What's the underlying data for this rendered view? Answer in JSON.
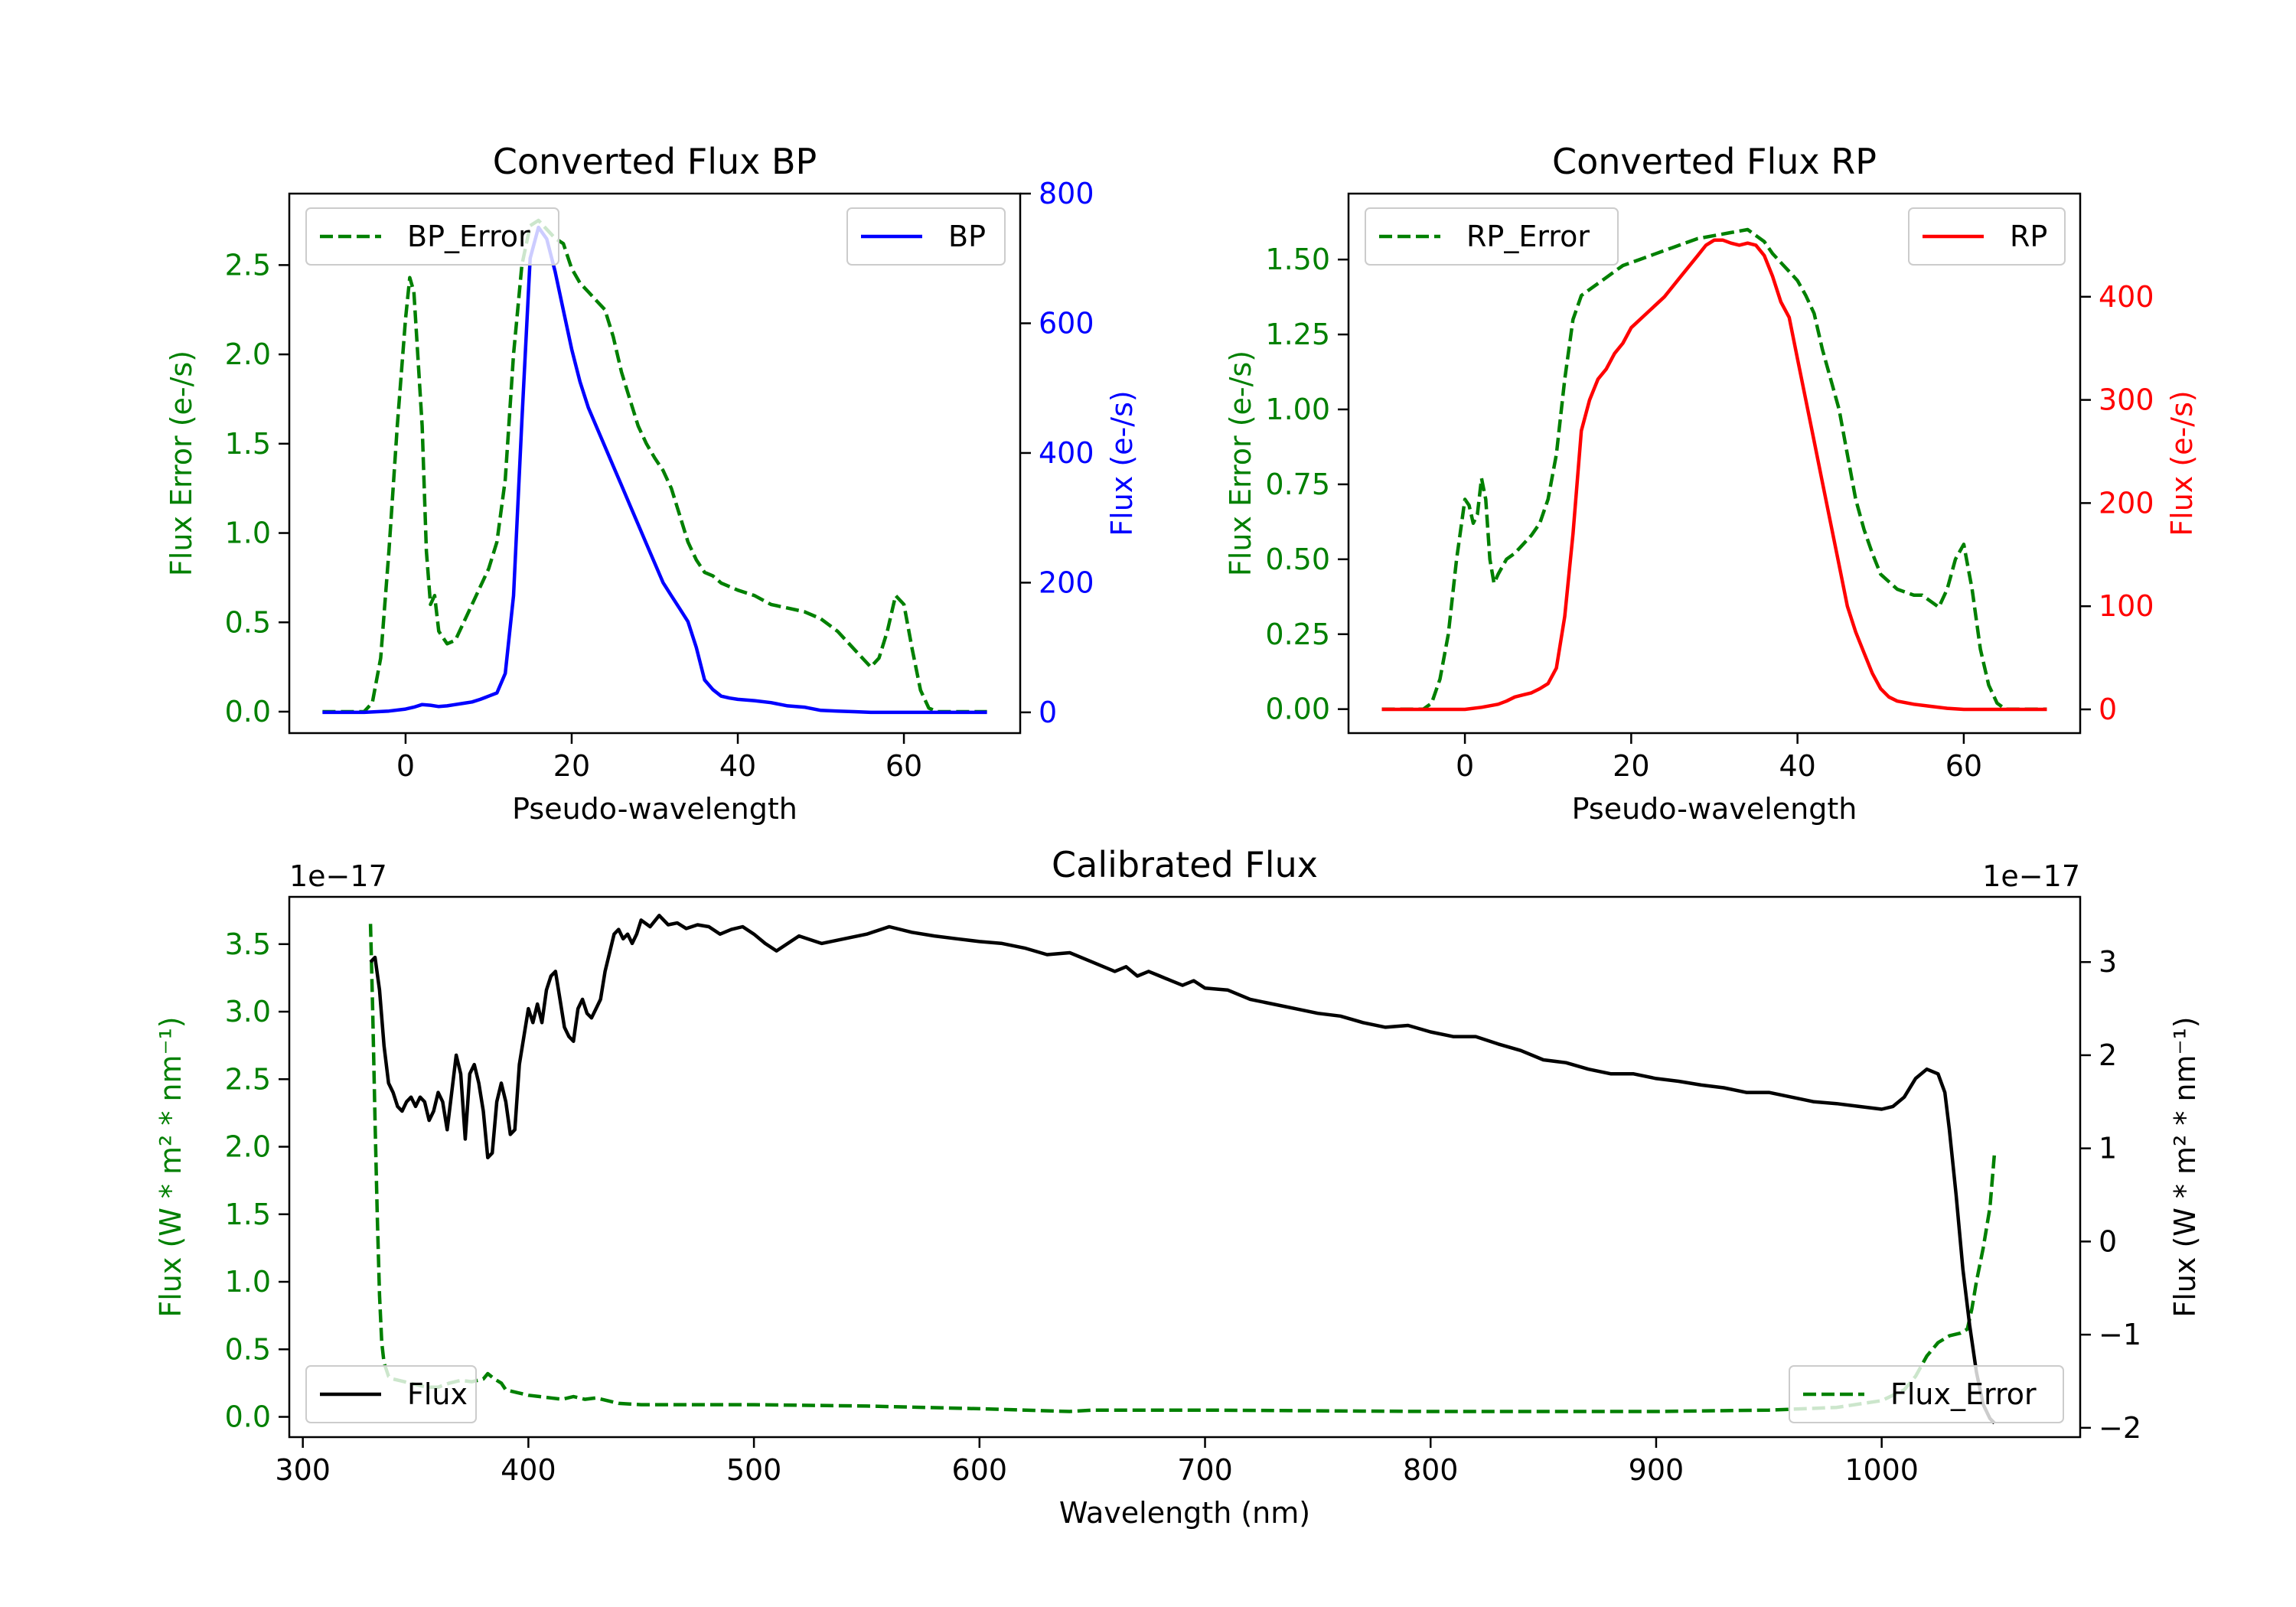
{
  "colors": {
    "green": "#008000",
    "blue": "#0000ff",
    "red": "#ff0000",
    "black": "#000000"
  },
  "chart_data": [
    {
      "type": "line",
      "title": "Converted Flux BP",
      "xlabel": "Pseudo-wavelength",
      "ylabel": "Flux Error (e-/s)",
      "ylabel_right": "Flux (e-/s)",
      "xlim": [
        -14,
        74
      ],
      "ylim": [
        -0.12,
        2.9
      ],
      "ylim_right": [
        -32,
        800
      ],
      "x_ticks": [
        0,
        20,
        40,
        60
      ],
      "y_ticks": [
        0.0,
        0.5,
        1.0,
        1.5,
        2.0,
        2.5
      ],
      "y_tick_labels": [
        "0.0",
        "0.5",
        "1.0",
        "1.5",
        "2.0",
        "2.5"
      ],
      "y_ticks_right": [
        0,
        200,
        400,
        600,
        800
      ],
      "y_tick_labels_right": [
        "0",
        "200",
        "400",
        "600",
        "800"
      ],
      "legend_left": "BP_Error",
      "legend_right": "BP",
      "series": [
        {
          "name": "BP_Error",
          "axis": "left",
          "color": "green",
          "dash": true,
          "x": [
            -10,
            -5,
            -4,
            -3,
            -2,
            -1,
            0,
            0.5,
            1,
            2,
            2.5,
            3,
            3.5,
            4,
            5,
            6,
            7,
            8,
            9,
            10,
            11,
            12,
            13,
            14,
            15,
            16,
            17,
            18,
            19,
            20,
            21,
            22,
            23,
            24,
            25,
            26,
            27,
            28,
            29,
            30,
            31,
            32,
            33,
            34,
            35,
            36,
            37,
            38,
            40,
            42,
            44,
            46,
            48,
            50,
            52,
            54,
            56,
            57,
            58,
            59,
            60,
            61,
            62,
            63,
            64,
            65,
            66,
            67,
            68,
            69,
            70
          ],
          "values": [
            0,
            0,
            0.05,
            0.3,
            0.9,
            1.6,
            2.2,
            2.43,
            2.35,
            1.6,
            0.9,
            0.6,
            0.65,
            0.45,
            0.38,
            0.4,
            0.5,
            0.6,
            0.7,
            0.8,
            0.95,
            1.3,
            2.0,
            2.5,
            2.72,
            2.75,
            2.7,
            2.65,
            2.62,
            2.48,
            2.4,
            2.35,
            2.3,
            2.25,
            2.1,
            1.9,
            1.75,
            1.6,
            1.5,
            1.42,
            1.35,
            1.25,
            1.1,
            0.95,
            0.85,
            0.78,
            0.76,
            0.72,
            0.68,
            0.65,
            0.6,
            0.58,
            0.56,
            0.52,
            0.45,
            0.35,
            0.25,
            0.3,
            0.45,
            0.65,
            0.6,
            0.35,
            0.12,
            0.02,
            0,
            0,
            0,
            0,
            0,
            0,
            0
          ]
        },
        {
          "name": "BP",
          "axis": "right",
          "color": "blue",
          "dash": false,
          "x": [
            -10,
            -5,
            -2,
            0,
            1,
            2,
            3,
            4,
            5,
            6,
            7,
            8,
            9,
            10,
            11,
            12,
            13,
            14,
            15,
            16,
            17,
            18,
            19,
            20,
            21,
            22,
            23,
            24,
            25,
            26,
            27,
            28,
            29,
            30,
            31,
            32,
            33,
            34,
            35,
            36,
            37,
            38,
            39,
            40,
            42,
            44,
            46,
            48,
            50,
            52,
            54,
            56,
            58,
            60,
            62,
            65,
            70
          ],
          "values": [
            0,
            0,
            2,
            5,
            8,
            12,
            11,
            9,
            10,
            12,
            14,
            16,
            20,
            25,
            30,
            60,
            180,
            450,
            700,
            748,
            730,
            680,
            620,
            560,
            510,
            470,
            440,
            410,
            380,
            350,
            320,
            290,
            260,
            230,
            200,
            180,
            160,
            140,
            100,
            50,
            35,
            25,
            22,
            20,
            18,
            15,
            10,
            8,
            3,
            2,
            1,
            0,
            0,
            0,
            0,
            0,
            0
          ]
        }
      ]
    },
    {
      "type": "line",
      "title": "Converted Flux RP",
      "xlabel": "Pseudo-wavelength",
      "ylabel": "Flux Error (e-/s)",
      "ylabel_right": "Flux (e-/s)",
      "xlim": [
        -14,
        74
      ],
      "ylim": [
        -0.08,
        1.72
      ],
      "ylim_right": [
        -23,
        500
      ],
      "x_ticks": [
        0,
        20,
        40,
        60
      ],
      "y_ticks": [
        0.0,
        0.25,
        0.5,
        0.75,
        1.0,
        1.25,
        1.5
      ],
      "y_tick_labels": [
        "0.00",
        "0.25",
        "0.50",
        "0.75",
        "1.00",
        "1.25",
        "1.50"
      ],
      "y_ticks_right": [
        0,
        100,
        200,
        300,
        400
      ],
      "y_tick_labels_right": [
        "0",
        "100",
        "200",
        "300",
        "400"
      ],
      "legend_left": "RP_Error",
      "legend_right": "RP",
      "series": [
        {
          "name": "RP_Error",
          "axis": "left",
          "color": "green",
          "dash": true,
          "x": [
            -10,
            -5,
            -4,
            -3,
            -2,
            -1,
            0,
            0.5,
            1,
            1.5,
            2,
            2.5,
            3,
            3.5,
            4,
            5,
            6,
            7,
            8,
            9,
            10,
            11,
            12,
            13,
            14,
            15,
            16,
            17,
            18,
            19,
            20,
            21,
            22,
            23,
            24,
            25,
            26,
            28,
            30,
            32,
            34,
            35,
            36,
            37,
            38,
            39,
            40,
            41,
            42,
            43,
            44,
            45,
            46,
            47,
            48,
            49,
            50,
            52,
            54,
            55,
            56,
            57,
            58,
            59,
            60,
            61,
            62,
            63,
            64,
            65,
            70
          ],
          "values": [
            0,
            0,
            0.02,
            0.1,
            0.25,
            0.5,
            0.7,
            0.68,
            0.62,
            0.65,
            0.77,
            0.7,
            0.5,
            0.42,
            0.45,
            0.5,
            0.52,
            0.55,
            0.58,
            0.62,
            0.7,
            0.85,
            1.1,
            1.3,
            1.38,
            1.4,
            1.42,
            1.44,
            1.46,
            1.48,
            1.49,
            1.5,
            1.51,
            1.52,
            1.53,
            1.54,
            1.55,
            1.57,
            1.58,
            1.59,
            1.6,
            1.58,
            1.56,
            1.52,
            1.49,
            1.46,
            1.43,
            1.38,
            1.32,
            1.2,
            1.1,
            1.0,
            0.85,
            0.7,
            0.6,
            0.52,
            0.45,
            0.4,
            0.38,
            0.38,
            0.36,
            0.34,
            0.4,
            0.5,
            0.55,
            0.4,
            0.2,
            0.08,
            0.02,
            0,
            0
          ]
        },
        {
          "name": "RP",
          "axis": "right",
          "color": "red",
          "dash": false,
          "x": [
            -10,
            -5,
            0,
            2,
            4,
            5,
            6,
            7,
            8,
            9,
            10,
            11,
            12,
            13,
            14,
            15,
            16,
            17,
            18,
            19,
            20,
            22,
            24,
            26,
            28,
            29,
            30,
            31,
            32,
            33,
            34,
            35,
            36,
            37,
            38,
            39,
            40,
            41,
            42,
            43,
            44,
            45,
            46,
            47,
            48,
            49,
            50,
            51,
            52,
            54,
            56,
            58,
            60,
            62,
            65,
            70
          ],
          "values": [
            0,
            0,
            0,
            2,
            5,
            8,
            12,
            14,
            16,
            20,
            25,
            40,
            90,
            170,
            270,
            300,
            320,
            330,
            345,
            355,
            370,
            385,
            400,
            420,
            440,
            450,
            455,
            455,
            452,
            450,
            452,
            450,
            440,
            420,
            395,
            380,
            340,
            300,
            260,
            220,
            180,
            140,
            100,
            75,
            55,
            35,
            20,
            12,
            8,
            5,
            3,
            1,
            0,
            0,
            0,
            0
          ]
        }
      ]
    },
    {
      "type": "line",
      "title": "Calibrated Flux",
      "xlabel": "Wavelength (nm)",
      "ylabel": "Flux (W * m² * nm⁻¹)",
      "ylabel_right": "Flux (W * m² * nm⁻¹)",
      "offset_left": "1e−17",
      "offset_right": "1e−17",
      "xlim": [
        294,
        1088
      ],
      "ylim": [
        -0.15,
        3.85
      ],
      "ylim_right": [
        -2.1,
        3.7
      ],
      "x_ticks": [
        300,
        400,
        500,
        600,
        700,
        800,
        900,
        1000
      ],
      "y_ticks": [
        0.0,
        0.5,
        1.0,
        1.5,
        2.0,
        2.5,
        3.0,
        3.5
      ],
      "y_tick_labels": [
        "0.0",
        "0.5",
        "1.0",
        "1.5",
        "2.0",
        "2.5",
        "3.0",
        "3.5"
      ],
      "y_ticks_right": [
        -2,
        -1,
        0,
        1,
        2,
        3
      ],
      "y_tick_labels_right": [
        "−2",
        "−1",
        "0",
        "1",
        "2",
        "3"
      ],
      "legend_left": "Flux",
      "legend_right": "Flux_Error",
      "series": [
        {
          "name": "Flux_Error",
          "axis": "left",
          "color": "green",
          "dash": true,
          "x": [
            330,
            331,
            332,
            333,
            334,
            335,
            336,
            338,
            340,
            345,
            350,
            355,
            360,
            365,
            370,
            375,
            380,
            382,
            385,
            388,
            390,
            395,
            400,
            405,
            410,
            415,
            420,
            425,
            430,
            435,
            440,
            450,
            460,
            480,
            500,
            550,
            600,
            640,
            650,
            700,
            800,
            900,
            950,
            980,
            1000,
            1010,
            1015,
            1020,
            1025,
            1030,
            1035,
            1038,
            1040,
            1042,
            1045,
            1048,
            1050
          ],
          "values": [
            3.65,
            3.0,
            2.2,
            1.5,
            0.9,
            0.55,
            0.4,
            0.3,
            0.28,
            0.26,
            0.24,
            0.22,
            0.22,
            0.25,
            0.27,
            0.26,
            0.28,
            0.32,
            0.28,
            0.25,
            0.2,
            0.18,
            0.16,
            0.15,
            0.14,
            0.13,
            0.15,
            0.13,
            0.14,
            0.12,
            0.1,
            0.09,
            0.09,
            0.09,
            0.09,
            0.08,
            0.06,
            0.04,
            0.05,
            0.05,
            0.04,
            0.04,
            0.05,
            0.07,
            0.12,
            0.2,
            0.3,
            0.45,
            0.55,
            0.6,
            0.62,
            0.65,
            0.8,
            1.0,
            1.25,
            1.55,
            1.95
          ]
        },
        {
          "name": "Flux",
          "axis": "right",
          "color": "black",
          "dash": false,
          "x": [
            330,
            332,
            334,
            336,
            338,
            340,
            342,
            344,
            346,
            348,
            350,
            352,
            354,
            356,
            358,
            360,
            362,
            364,
            366,
            368,
            370,
            372,
            374,
            376,
            378,
            380,
            382,
            384,
            386,
            388,
            390,
            392,
            394,
            396,
            398,
            400,
            402,
            404,
            406,
            408,
            410,
            412,
            414,
            416,
            418,
            420,
            422,
            424,
            426,
            428,
            430,
            432,
            434,
            436,
            438,
            440,
            442,
            444,
            446,
            448,
            450,
            454,
            458,
            462,
            466,
            470,
            475,
            480,
            485,
            490,
            495,
            500,
            505,
            510,
            515,
            520,
            530,
            540,
            550,
            560,
            570,
            580,
            590,
            600,
            610,
            620,
            630,
            640,
            650,
            655,
            660,
            665,
            670,
            675,
            680,
            685,
            690,
            695,
            700,
            710,
            720,
            730,
            740,
            750,
            760,
            770,
            780,
            790,
            800,
            810,
            820,
            830,
            840,
            850,
            860,
            870,
            880,
            890,
            900,
            910,
            920,
            930,
            940,
            950,
            960,
            970,
            980,
            990,
            1000,
            1005,
            1010,
            1015,
            1020,
            1025,
            1028,
            1030,
            1033,
            1036,
            1039,
            1042,
            1045,
            1048,
            1050
          ],
          "values": [
            3.0,
            3.05,
            2.7,
            2.1,
            1.7,
            1.6,
            1.45,
            1.4,
            1.5,
            1.55,
            1.45,
            1.55,
            1.5,
            1.3,
            1.4,
            1.6,
            1.5,
            1.2,
            1.6,
            2.0,
            1.8,
            1.1,
            1.8,
            1.9,
            1.7,
            1.4,
            0.9,
            0.95,
            1.5,
            1.7,
            1.5,
            1.15,
            1.2,
            1.9,
            2.2,
            2.5,
            2.35,
            2.55,
            2.35,
            2.7,
            2.85,
            2.9,
            2.6,
            2.3,
            2.2,
            2.15,
            2.5,
            2.6,
            2.45,
            2.4,
            2.5,
            2.6,
            2.9,
            3.1,
            3.3,
            3.35,
            3.25,
            3.3,
            3.2,
            3.3,
            3.45,
            3.38,
            3.5,
            3.4,
            3.42,
            3.36,
            3.4,
            3.38,
            3.3,
            3.35,
            3.38,
            3.3,
            3.2,
            3.12,
            3.2,
            3.28,
            3.2,
            3.25,
            3.3,
            3.38,
            3.32,
            3.28,
            3.25,
            3.22,
            3.2,
            3.15,
            3.08,
            3.1,
            3.0,
            2.95,
            2.9,
            2.95,
            2.85,
            2.9,
            2.85,
            2.8,
            2.75,
            2.8,
            2.72,
            2.7,
            2.6,
            2.55,
            2.5,
            2.45,
            2.42,
            2.35,
            2.3,
            2.32,
            2.25,
            2.2,
            2.2,
            2.12,
            2.05,
            1.95,
            1.92,
            1.85,
            1.8,
            1.8,
            1.75,
            1.72,
            1.68,
            1.65,
            1.6,
            1.6,
            1.55,
            1.5,
            1.48,
            1.45,
            1.42,
            1.45,
            1.55,
            1.75,
            1.85,
            1.8,
            1.6,
            1.2,
            0.5,
            -0.3,
            -0.9,
            -1.4,
            -1.75,
            -1.9,
            -1.95
          ]
        }
      ]
    }
  ]
}
